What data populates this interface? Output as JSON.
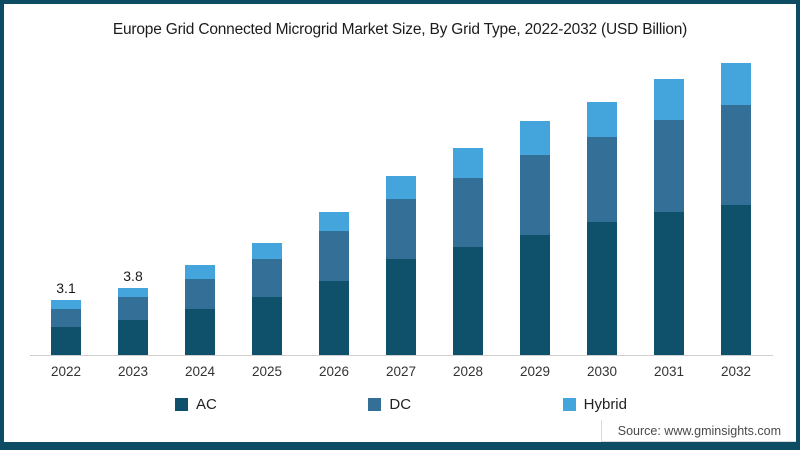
{
  "title": "Europe Grid Connected Microgrid Market Size, By Grid Type, 2022-2032 (USD Billion)",
  "source": "Source: www.gminsights.com",
  "colors": {
    "frame": "#0e4c64",
    "ac": "#0f506b",
    "dc": "#336f96",
    "hybrid": "#44a5dd",
    "axis": "#cfcfcf"
  },
  "legend": [
    {
      "label": "AC",
      "color": "#0f506b"
    },
    {
      "label": "DC",
      "color": "#336f96"
    },
    {
      "label": "Hybrid",
      "color": "#44a5dd"
    }
  ],
  "chart_data": {
    "type": "bar",
    "stacked": true,
    "title": "Europe Grid Connected Microgrid Market Size, By Grid Type, 2022-2032 (USD Billion)",
    "unit": "USD Billion",
    "xlabel": "",
    "ylabel": "",
    "ylim": [
      0,
      18
    ],
    "grid": false,
    "legend_position": "bottom",
    "categories": [
      "2022",
      "2023",
      "2024",
      "2025",
      "2026",
      "2027",
      "2028",
      "2029",
      "2030",
      "2031",
      "2032"
    ],
    "series": [
      {
        "name": "AC",
        "color": "#0f506b",
        "values": [
          1.6,
          2.0,
          2.6,
          3.3,
          4.2,
          5.4,
          6.1,
          6.8,
          7.5,
          8.1,
          8.5
        ]
      },
      {
        "name": "DC",
        "color": "#336f96",
        "values": [
          1.0,
          1.3,
          1.7,
          2.1,
          2.8,
          3.4,
          3.9,
          4.5,
          4.8,
          5.2,
          5.6
        ]
      },
      {
        "name": "Hybrid",
        "color": "#44a5dd",
        "values": [
          0.5,
          0.5,
          0.8,
          0.9,
          1.1,
          1.3,
          1.7,
          1.9,
          2.0,
          2.3,
          2.4
        ]
      }
    ],
    "totals": [
      3.1,
      3.8,
      5.1,
      6.3,
      8.1,
      10.1,
      11.7,
      13.2,
      14.3,
      15.6,
      16.5
    ],
    "data_labels": {
      "2022": "3.1",
      "2023": "3.8"
    }
  }
}
